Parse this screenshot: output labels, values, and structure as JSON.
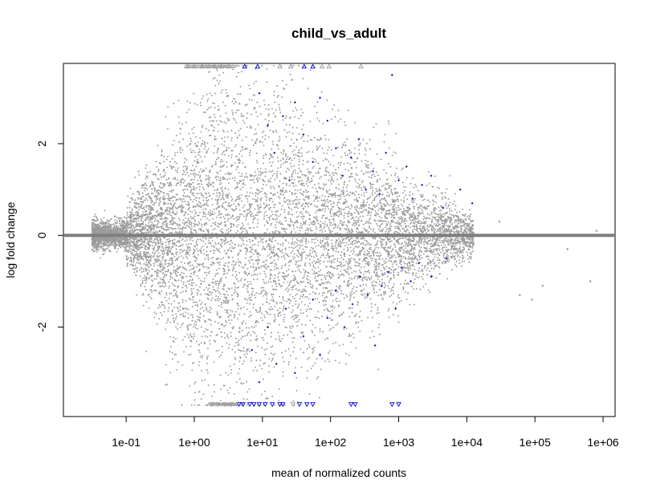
{
  "chart_data": {
    "type": "scatter",
    "title": "child_vs_adult",
    "xlabel": "mean of normalized counts",
    "ylabel": "log fold change",
    "x_scale": "log10",
    "xlim": [
      0.012,
      1500000
    ],
    "ylim": [
      -3.95,
      3.75
    ],
    "x_ticks": [
      0.1,
      1,
      10,
      100,
      1000,
      10000,
      100000,
      1000000
    ],
    "x_tick_labels": [
      "1e-01",
      "1e+00",
      "1e+01",
      "1e+02",
      "1e+03",
      "1e+04",
      "1e+05",
      "1e+06"
    ],
    "y_ticks": [
      -2,
      0,
      2
    ],
    "y_tick_labels": [
      "-2",
      "0",
      "2"
    ],
    "hline": 0,
    "grid": false,
    "legend": "none",
    "colors": {
      "not_significant": "#9a9a9a",
      "significant": "#0000cc",
      "zero_line": "#7f7f7f"
    },
    "capped_values": {
      "upper": 3.7,
      "lower": -3.7
    },
    "series_significant_points": [
      [
        9,
        3.1
      ],
      [
        12,
        2.4
      ],
      [
        15,
        1.8
      ],
      [
        20,
        2.6
      ],
      [
        25,
        1.2
      ],
      [
        30,
        2.9
      ],
      [
        40,
        2.2
      ],
      [
        55,
        1.6
      ],
      [
        70,
        3.0
      ],
      [
        90,
        2.5
      ],
      [
        120,
        1.9
      ],
      [
        150,
        1.3
      ],
      [
        200,
        1.7
      ],
      [
        260,
        2.1
      ],
      [
        330,
        1.0
      ],
      [
        420,
        1.4
      ],
      [
        520,
        0.9
      ],
      [
        650,
        1.8
      ],
      [
        800,
        3.5
      ],
      [
        1000,
        1.2
      ],
      [
        1300,
        1.5
      ],
      [
        1600,
        0.8
      ],
      [
        2200,
        1.1
      ],
      [
        3000,
        1.3
      ],
      [
        4500,
        0.6
      ],
      [
        8000,
        1.0
      ],
      [
        12000,
        0.7
      ],
      [
        7,
        -2.5
      ],
      [
        9,
        -3.2
      ],
      [
        12,
        -2.0
      ],
      [
        16,
        -2.8
      ],
      [
        22,
        -1.6
      ],
      [
        30,
        -3.0
      ],
      [
        40,
        -2.2
      ],
      [
        55,
        -1.4
      ],
      [
        70,
        -2.6
      ],
      [
        90,
        -1.8
      ],
      [
        120,
        -1.2
      ],
      [
        160,
        -2.0
      ],
      [
        210,
        -1.5
      ],
      [
        270,
        -0.9
      ],
      [
        350,
        -1.3
      ],
      [
        450,
        -2.4
      ],
      [
        560,
        -1.1
      ],
      [
        700,
        -0.8
      ],
      [
        900,
        -1.6
      ],
      [
        1100,
        -0.7
      ],
      [
        1500,
        -1.0
      ],
      [
        2000,
        -0.6
      ],
      [
        3000,
        -0.9
      ],
      [
        5000,
        -0.5
      ]
    ],
    "series_capped_upper": [
      0.8,
      1.0,
      1.3,
      1.6,
      2.0,
      2.5,
      3.2,
      5.5,
      8.5,
      18,
      26,
      41,
      55,
      75,
      95,
      280
    ],
    "series_capped_upper_significant": [
      5.5,
      8.5,
      41,
      55
    ],
    "series_capped_lower": [
      1.8,
      2.2,
      2.8,
      3.5,
      4.5,
      5.2,
      6.5,
      7.5,
      9,
      11,
      14,
      18,
      20,
      28,
      35,
      45,
      55,
      200,
      230,
      800,
      1000
    ],
    "series_capped_lower_significant": [
      4.5,
      5.2,
      6.5,
      7.5,
      9,
      11,
      14,
      18,
      20,
      35,
      45,
      55,
      200,
      230,
      800,
      1000
    ],
    "isolated_high_mean_points": [
      [
        30000,
        0.3
      ],
      [
        60000,
        -1.3
      ],
      [
        90000,
        -1.4
      ],
      [
        130000,
        -1.1
      ],
      [
        300000,
        -0.3
      ],
      [
        650000,
        -1.0
      ],
      [
        800000,
        0.1
      ]
    ]
  }
}
